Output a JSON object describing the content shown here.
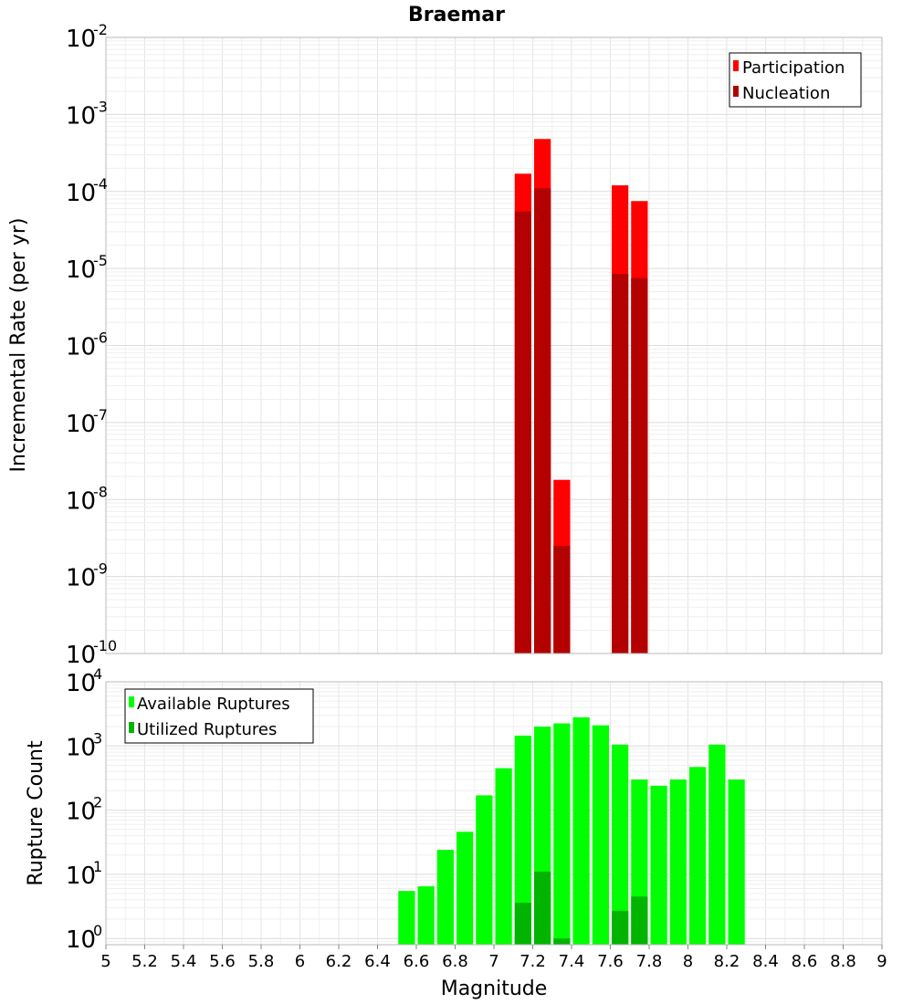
{
  "title": "Braemar",
  "chart_data": [
    {
      "type": "bar",
      "ylabel": "Incremental Rate (per yr)",
      "yscale": "log",
      "ylim": [
        1e-10,
        0.01
      ],
      "xlim": [
        5,
        9
      ],
      "bin_width": 0.1,
      "y_ticks": [
        {
          "base": "10",
          "exp": "-10"
        },
        {
          "base": "10",
          "exp": "-9"
        },
        {
          "base": "10",
          "exp": "-8"
        },
        {
          "base": "10",
          "exp": "-7"
        },
        {
          "base": "10",
          "exp": "-6"
        },
        {
          "base": "10",
          "exp": "-5"
        },
        {
          "base": "10",
          "exp": "-4"
        },
        {
          "base": "10",
          "exp": "-3"
        },
        {
          "base": "10",
          "exp": "-2"
        }
      ],
      "legend_position": "top-right",
      "series": [
        {
          "name": "Participation",
          "color": "#ff0000",
          "x": [
            7.15,
            7.25,
            7.35,
            7.65,
            7.75
          ],
          "values": [
            0.00017,
            0.00048,
            1.8e-08,
            0.00012,
            7.5e-05
          ]
        },
        {
          "name": "Nucleation",
          "color": "#b30000",
          "x": [
            7.15,
            7.25,
            7.35,
            7.65,
            7.75
          ],
          "values": [
            5.5e-05,
            0.00011,
            2.5e-09,
            8.5e-06,
            7.5e-06
          ]
        }
      ]
    },
    {
      "type": "bar",
      "xlabel": "Magnitude",
      "ylabel": "Rupture Count",
      "yscale": "log",
      "ylim": [
        0.8,
        10000
      ],
      "xlim": [
        5,
        9
      ],
      "bin_width": 0.1,
      "x_ticks": [
        "5",
        "5.2",
        "5.4",
        "5.6",
        "5.8",
        "6",
        "6.2",
        "6.4",
        "6.6",
        "6.8",
        "7",
        "7.2",
        "7.4",
        "7.6",
        "7.8",
        "8",
        "8.2",
        "8.4",
        "8.6",
        "8.8",
        "9"
      ],
      "y_ticks": [
        {
          "base": "10",
          "exp": "0"
        },
        {
          "base": "10",
          "exp": "1"
        },
        {
          "base": "10",
          "exp": "2"
        },
        {
          "base": "10",
          "exp": "3"
        },
        {
          "base": "10",
          "exp": "4"
        }
      ],
      "legend_position": "top-left",
      "series": [
        {
          "name": "Available Ruptures",
          "color": "#00ff00",
          "x": [
            6.55,
            6.65,
            6.75,
            6.85,
            6.95,
            7.05,
            7.15,
            7.25,
            7.35,
            7.45,
            7.55,
            7.65,
            7.75,
            7.85,
            7.95,
            8.05,
            8.15,
            8.25
          ],
          "values": [
            5.5,
            6.5,
            24,
            46,
            170,
            450,
            1450,
            2000,
            2250,
            2800,
            2100,
            1050,
            300,
            240,
            300,
            470,
            1050,
            300
          ]
        },
        {
          "name": "Utilized Ruptures",
          "color": "#00b400",
          "x": [
            7.15,
            7.25,
            7.35,
            7.65,
            7.75
          ],
          "values": [
            3.6,
            11,
            1,
            2.7,
            4.5
          ]
        }
      ]
    }
  ]
}
